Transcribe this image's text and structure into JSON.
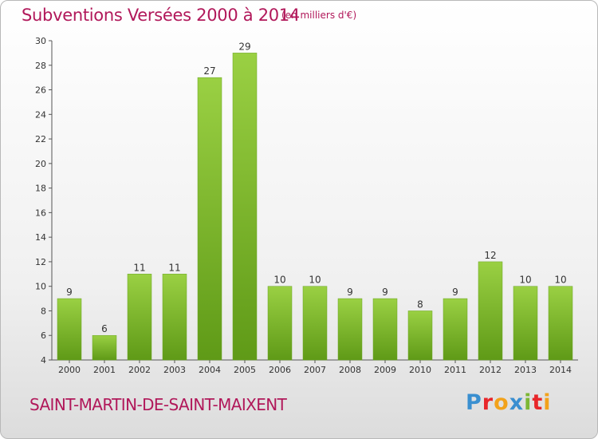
{
  "header": {
    "title": "Subventions Versées 2000 à 2014",
    "unit": "(en milliers d'€)"
  },
  "footer": {
    "commune": "SAINT-MARTIN-DE-SAINT-MAIXENT",
    "logo_text": "Proxiti",
    "logo_colors": [
      "#3a8fd0",
      "#e8262a",
      "#f2a21b",
      "#3a8fd0",
      "#7db734",
      "#e8262a",
      "#f2a21b"
    ]
  },
  "chart_data": {
    "type": "bar",
    "categories": [
      "2000",
      "2001",
      "2002",
      "2003",
      "2004",
      "2005",
      "2006",
      "2007",
      "2008",
      "2009",
      "2010",
      "2011",
      "2012",
      "2013",
      "2014"
    ],
    "values": [
      9,
      6,
      11,
      11,
      27,
      29,
      10,
      10,
      9,
      9,
      8,
      9,
      12,
      10,
      10
    ],
    "ylim": [
      4,
      30
    ],
    "yticks": [
      4,
      6,
      8,
      10,
      12,
      14,
      16,
      18,
      20,
      22,
      24,
      26,
      28,
      30
    ],
    "grid": false,
    "bar_color": "#7cb82f",
    "title": "Subventions Versées 2000 à 2014",
    "xlabel": "",
    "ylabel": ""
  }
}
